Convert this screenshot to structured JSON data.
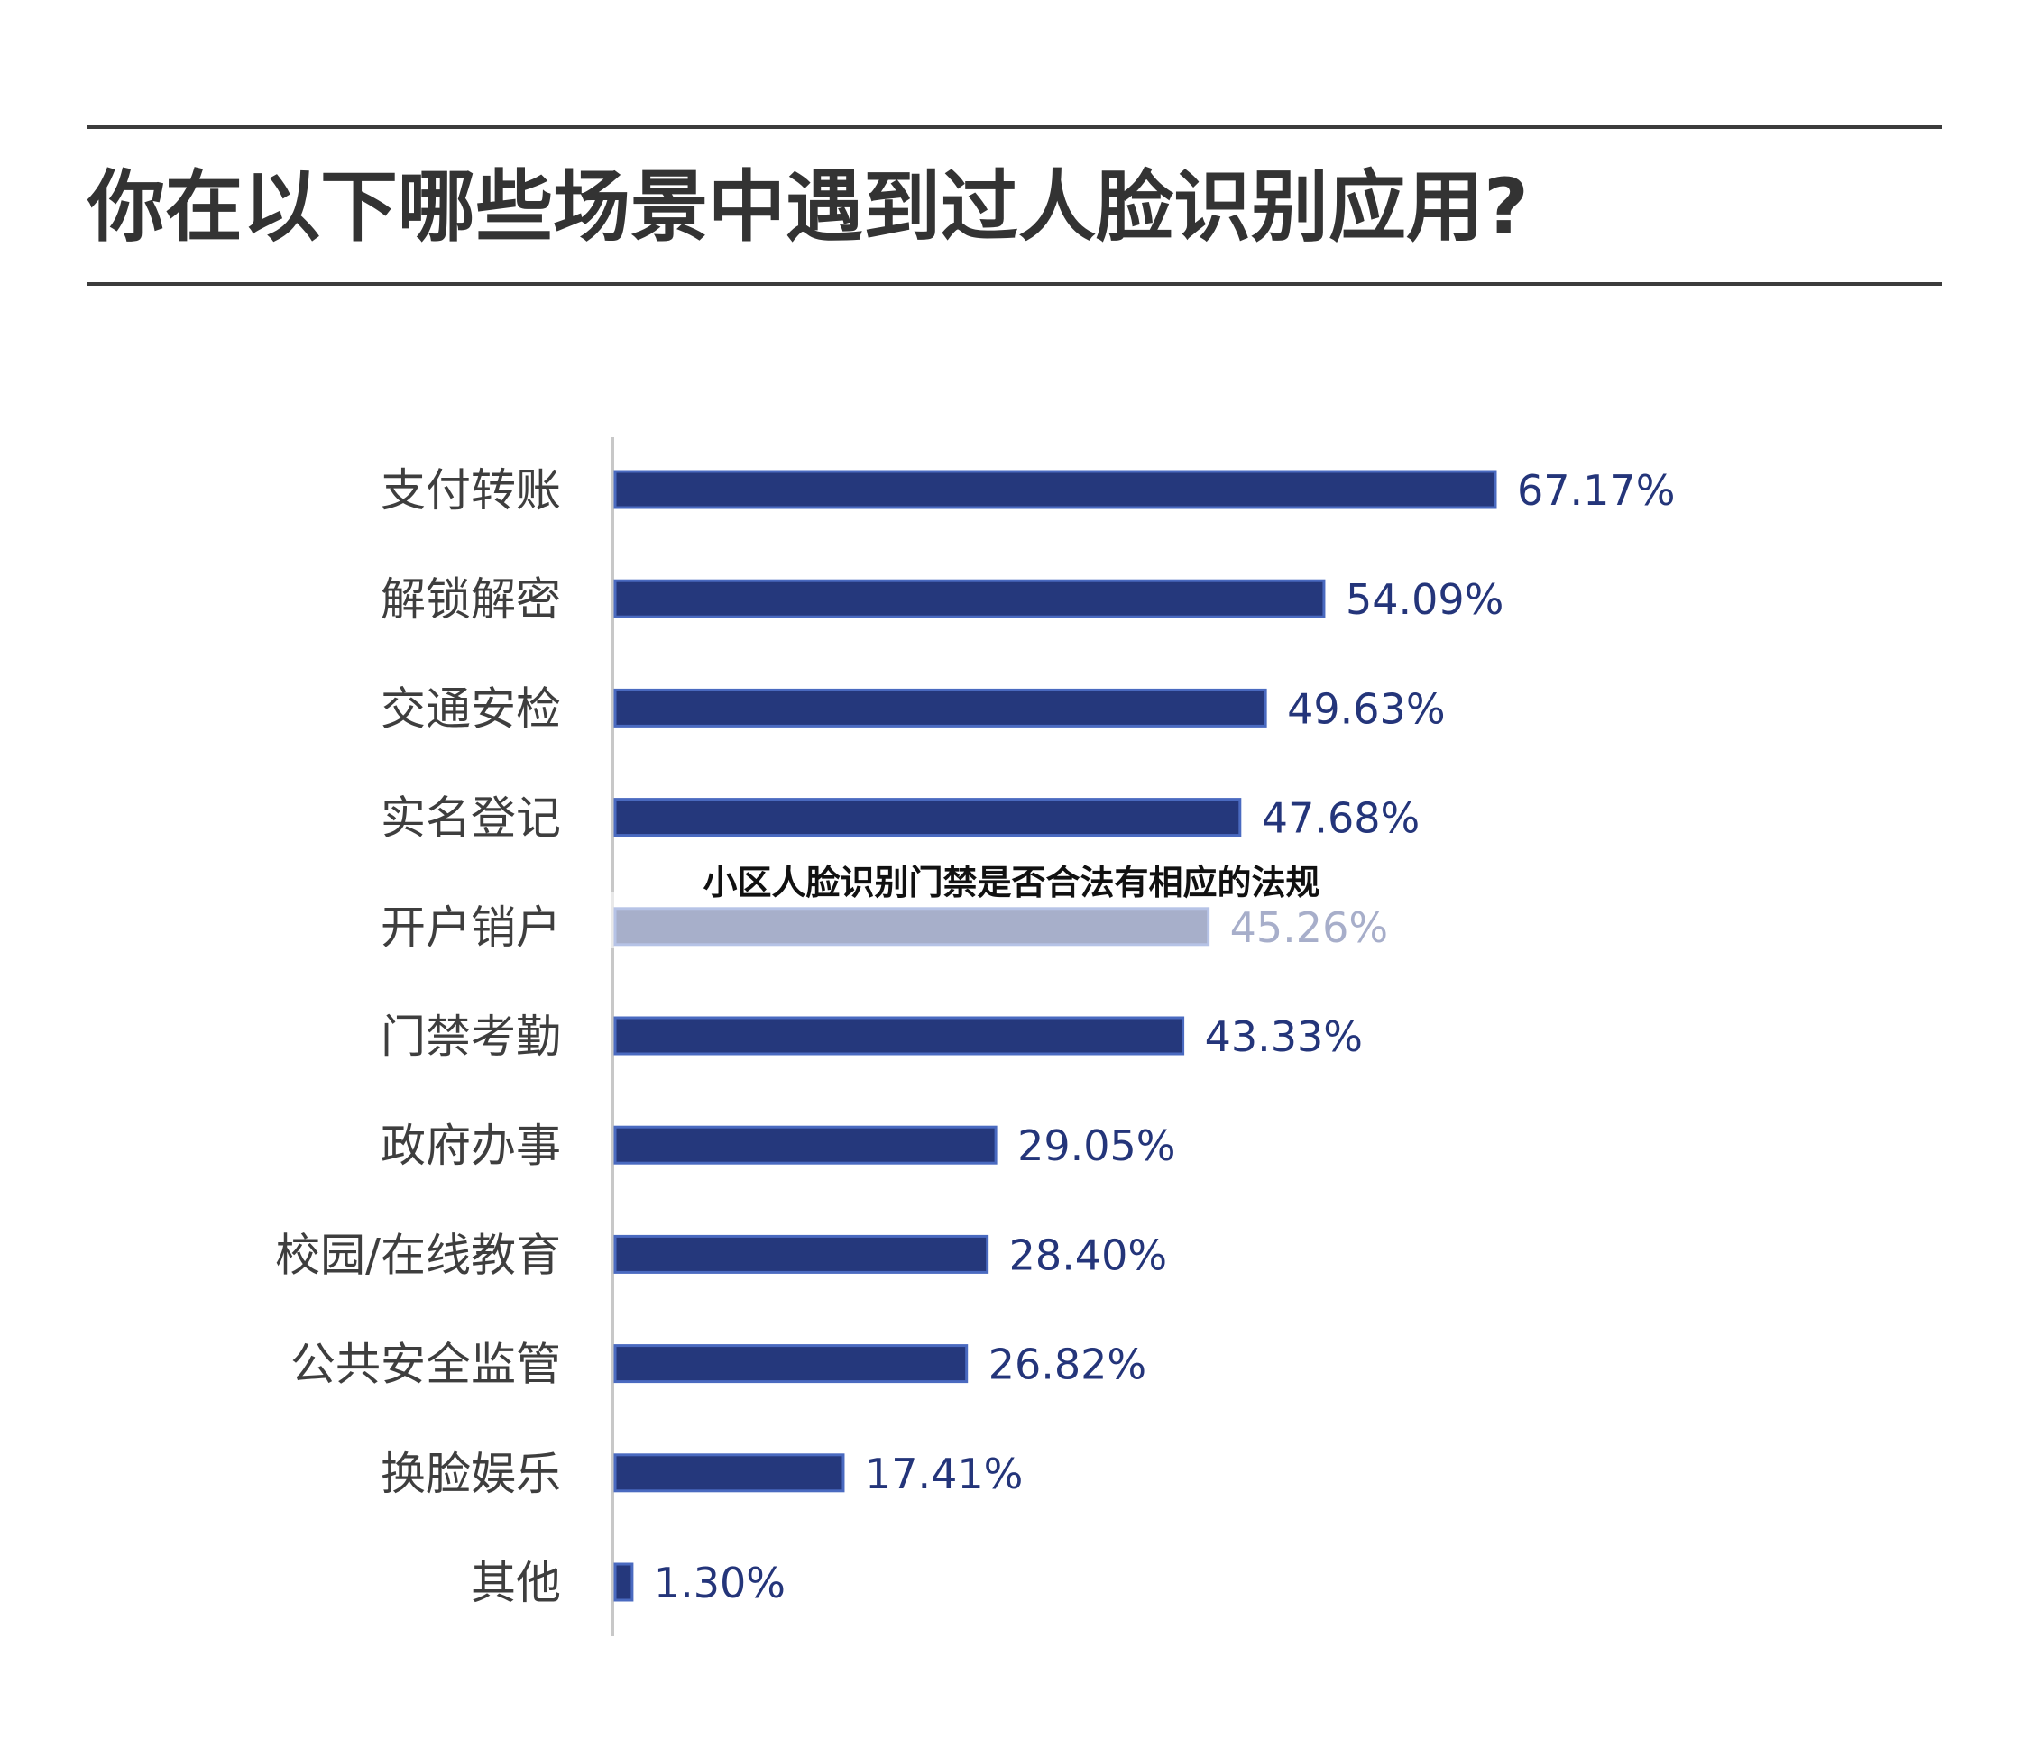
{
  "chart_data": {
    "type": "bar",
    "orientation": "horizontal",
    "title": "你在以下哪些场景中遇到过人脸识别应用?",
    "categories": [
      "支付转账",
      "解锁解密",
      "交通安检",
      "实名登记",
      "开户销户",
      "门禁考勤",
      "政府办事",
      "校园/在线教育",
      "公共安全监管",
      "换脸娱乐",
      "其他"
    ],
    "values": [
      67.17,
      54.09,
      49.63,
      47.68,
      45.26,
      43.33,
      29.05,
      28.4,
      26.82,
      17.41,
      1.3
    ],
    "value_labels": [
      "67.17%",
      "54.09%",
      "49.63%",
      "47.68%",
      "45.26%",
      "43.33%",
      "29.05%",
      "28.40%",
      "26.82%",
      "17.41%",
      "1.30%"
    ],
    "xlim": [
      0,
      100
    ],
    "bar_color": "#25387c",
    "grid": false,
    "legend": "none"
  },
  "overlay": {
    "text": "小区人脸识别门禁是否合法有相应的法规"
  }
}
